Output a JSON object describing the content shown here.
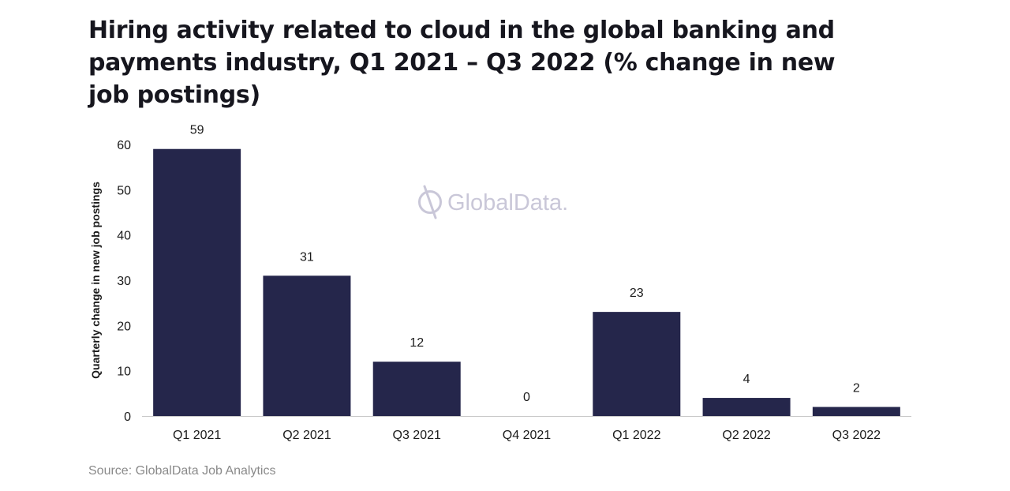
{
  "chart_data": {
    "type": "bar",
    "title": "Hiring activity related to cloud in the global banking and payments industry, Q1 2021 – Q3 2022 (% change in new job postings)",
    "categories": [
      "Q1 2021",
      "Q2 2021",
      "Q3 2021",
      "Q4 2021",
      "Q1 2022",
      "Q2 2022",
      "Q3 2022"
    ],
    "values": [
      59,
      31,
      12,
      0,
      23,
      4,
      2
    ],
    "data_labels": [
      "59",
      "31",
      "12",
      "0",
      "23",
      "4",
      "2"
    ],
    "xlabel": "",
    "ylabel": "Quarterly change in new job postings",
    "ylim": [
      0,
      60
    ],
    "yticks": [
      0,
      10,
      20,
      30,
      40,
      50,
      60
    ],
    "grid": false,
    "legend": "none",
    "bar_color": "#25264b",
    "axis_color": "#c8c8c8"
  },
  "watermark": {
    "text": "GlobalData.",
    "icon": "globaldata-logo-icon",
    "color": "#c9c7d8"
  },
  "source": "Source: GlobalData Job Analytics"
}
